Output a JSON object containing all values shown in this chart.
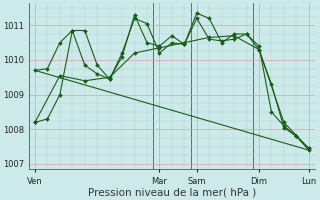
{
  "bg_color": "#cceaea",
  "line_color": "#1a5c1a",
  "xlabel": "Pression niveau de la mer( hPa )",
  "xlabel_fontsize": 7.5,
  "yticks": [
    1007,
    1008,
    1009,
    1010,
    1011
  ],
  "xtick_labels": [
    "Ven",
    "Mar",
    "Sam",
    "Dim",
    "Lun"
  ],
  "xtick_positions": [
    0,
    10,
    13,
    18,
    22
  ],
  "vlines": [
    9.5,
    12.5,
    17.5
  ],
  "series": [
    {
      "x": [
        0,
        1,
        2,
        3,
        4,
        5,
        6,
        7,
        8,
        9,
        10,
        11,
        12,
        13,
        14,
        15,
        16,
        17,
        18,
        19,
        20,
        21,
        22
      ],
      "y": [
        1008.2,
        1008.3,
        1009.0,
        1010.85,
        1010.85,
        1009.85,
        1009.45,
        1010.2,
        1011.2,
        1011.05,
        1010.2,
        1010.5,
        1010.45,
        1011.35,
        1011.2,
        1010.5,
        1010.75,
        1010.75,
        1010.4,
        1008.5,
        1008.1,
        1007.8,
        1007.45
      ]
    },
    {
      "x": [
        0,
        1,
        2,
        3,
        4,
        5,
        6,
        7,
        8,
        9,
        10,
        11,
        12,
        13,
        14,
        15,
        16,
        17,
        18,
        19,
        20,
        21,
        22
      ],
      "y": [
        1009.7,
        1009.75,
        1010.5,
        1010.85,
        1009.85,
        1009.6,
        1009.45,
        1010.1,
        1011.3,
        1010.5,
        1010.4,
        1010.7,
        1010.45,
        1011.2,
        1010.6,
        1010.55,
        1010.6,
        1010.75,
        1010.3,
        1009.3,
        1008.05,
        1007.8,
        1007.4
      ]
    },
    {
      "x": [
        0,
        2,
        4,
        6,
        8,
        10,
        12,
        14,
        16,
        18,
        20,
        22
      ],
      "y": [
        1008.2,
        1009.55,
        1009.4,
        1009.5,
        1010.2,
        1010.35,
        1010.5,
        1010.65,
        1010.7,
        1010.3,
        1008.2,
        1007.45
      ]
    },
    {
      "x": [
        0,
        22
      ],
      "y": [
        1009.7,
        1007.4
      ]
    }
  ],
  "ylim": [
    1006.85,
    1011.65
  ],
  "xlim": [
    -0.5,
    22.5
  ],
  "major_grid_color": "#c8a8a8",
  "minor_grid_color": "#b8d4d4"
}
